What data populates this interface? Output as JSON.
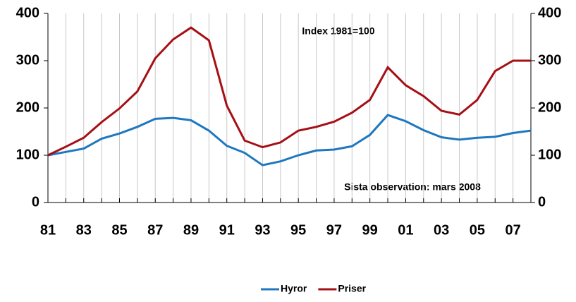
{
  "chart_data": {
    "type": "line",
    "annotations": [
      "Index 1981=100",
      "Sista observation: mars 2008"
    ],
    "categories": [
      "81",
      null,
      "83",
      null,
      "85",
      null,
      "87",
      null,
      "89",
      null,
      "91",
      null,
      "93",
      null,
      "95",
      null,
      "97",
      null,
      "99",
      null,
      "01",
      null,
      "03",
      null,
      "05",
      null,
      "07",
      null
    ],
    "series": [
      {
        "name": "Hyror",
        "color": "#1f77c0",
        "values": [
          100,
          107,
          114,
          135,
          146,
          160,
          177,
          179,
          174,
          152,
          120,
          105,
          79,
          87,
          100,
          110,
          112,
          119,
          143,
          185,
          172,
          153,
          138,
          133,
          137,
          139,
          147,
          152
        ]
      },
      {
        "name": "Priser",
        "color": "#a50f15",
        "values": [
          100,
          118,
          137,
          170,
          199,
          235,
          305,
          345,
          370,
          343,
          205,
          131,
          117,
          127,
          152,
          160,
          171,
          190,
          217,
          286,
          248,
          225,
          194,
          186,
          217,
          278,
          300,
          300
        ]
      }
    ],
    "ylim": [
      0,
      400
    ],
    "yticks": [
      0,
      100,
      200,
      300,
      400
    ],
    "y2lim": [
      0,
      400
    ],
    "y2ticks": [
      0,
      100,
      200,
      300,
      400
    ],
    "legend": "bottom"
  }
}
